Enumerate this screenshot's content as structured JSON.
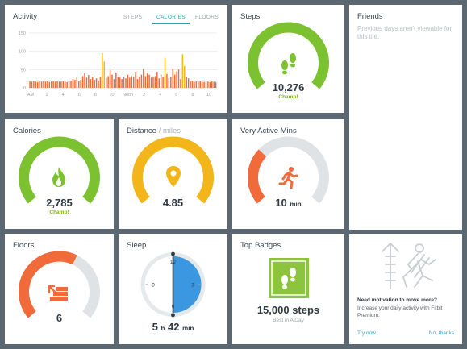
{
  "colors": {
    "background": "#5b6872",
    "tile": "#ffffff",
    "green": "#7cc130",
    "green_dark": "#5fa61e",
    "yellow": "#f2b61b",
    "orange": "#f06a3a",
    "gray_track": "#e0e3e5",
    "blue": "#3a97e0",
    "link": "#3aa4c8",
    "teal": "#2aa3b4"
  },
  "activity": {
    "title": "Activity",
    "tabs": [
      {
        "label": "STEPS",
        "active": false
      },
      {
        "label": "CALORIES",
        "active": true
      },
      {
        "label": "FLOORS",
        "active": false
      }
    ]
  },
  "chart_data": {
    "type": "bar",
    "title": "",
    "yticks": [
      "150",
      "100",
      "50",
      "0"
    ],
    "ylim": [
      0,
      150
    ],
    "xticks": [
      "AM",
      "2",
      "4",
      "6",
      "8",
      "10",
      "Noon",
      "2",
      "4",
      "6",
      "8",
      "10"
    ],
    "grid": true,
    "values": [
      18,
      17,
      18,
      17,
      16,
      18,
      17,
      18,
      17,
      18,
      16,
      17,
      18,
      17,
      18,
      17,
      17,
      18,
      17,
      16,
      18,
      20,
      24,
      22,
      28,
      18,
      22,
      32,
      40,
      28,
      35,
      24,
      30,
      22,
      26,
      20,
      30,
      95,
      72,
      28,
      32,
      48,
      36,
      24,
      42,
      30,
      28,
      24,
      30,
      26,
      36,
      28,
      32,
      30,
      44,
      24,
      30,
      36,
      52,
      32,
      40,
      36,
      28,
      30,
      32,
      44,
      26,
      36,
      30,
      82,
      38,
      26,
      30,
      52,
      36,
      45,
      50,
      24,
      92,
      60,
      30,
      26,
      20,
      18,
      16,
      18,
      17,
      18,
      17,
      16,
      18,
      17,
      16,
      18,
      17,
      16
    ],
    "highlight_indices": [
      37,
      38,
      69,
      78,
      79
    ],
    "highlight_color": "#f2b61b",
    "bar_color": "#f06a3a"
  },
  "steps": {
    "title": "Steps",
    "value": "10,276",
    "badge": "Champ!",
    "fraction": 1.0,
    "icon": "footprints-icon"
  },
  "friends": {
    "title": "Friends",
    "message": "Previous days aren't viewable for this tile."
  },
  "calories": {
    "title": "Calories",
    "value": "2,785",
    "badge": "Champ!",
    "fraction": 1.0,
    "icon": "flame-icon"
  },
  "distance": {
    "title": "Distance",
    "title_suffix": " / miles",
    "value": "4.85",
    "fraction": 1.0,
    "icon": "map-pin-icon"
  },
  "active_mins": {
    "title": "Very Active Mins",
    "value": "10",
    "unit": "min",
    "fraction": 0.32,
    "icon": "runner-icon"
  },
  "floors": {
    "title": "Floors",
    "value": "6",
    "fraction": 0.6,
    "icon": "stairs-icon"
  },
  "sleep": {
    "title": "Sleep",
    "hours": "5",
    "h_label": "h",
    "minutes": "42",
    "m_label": "min",
    "clock_labels": [
      "12",
      "3",
      "6",
      "9"
    ],
    "sleep_fraction_of_clock": 0.5
  },
  "badges": {
    "title": "Top Badges",
    "badge_name": "15,000 steps",
    "subtitle": "Best in A Day",
    "icon": "footprints-icon"
  },
  "promo": {
    "title": "Need motivation to move more?",
    "body": "Increase your daily activity with Fitbit Premium.",
    "try_label": "Try now",
    "dismiss_label": "No, thanks",
    "icon": "runner-outline-icon"
  }
}
